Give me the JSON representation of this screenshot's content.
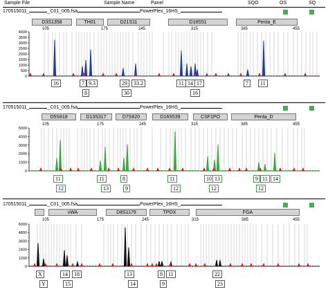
{
  "header": {
    "sample_file": "Sample File",
    "sample_name": "Sample Name",
    "panel": "Panel",
    "sqo": "SQO",
    "os": "OS",
    "sq": "SQ"
  },
  "colors": {
    "blue": "#1f3c9e",
    "green": "#3aa540",
    "black": "#111111",
    "red": "#d81b1b",
    "status": "#3cb54a",
    "bin": "#bdbdbd"
  },
  "panels": [
    {
      "sample_file": "170515011_",
      "sample_name": "_C01_005.fsa",
      "panel_name": "PowerPlex_16HS_",
      "color": "blue",
      "loci": [
        "D3S1358",
        "TH01",
        "D21S11",
        "D18S51",
        "Penta_E"
      ],
      "scale": [
        "105",
        "175",
        "245",
        "315",
        "385",
        "455"
      ],
      "yticks": [
        "4000",
        "3500",
        "3000",
        "2500",
        "2000",
        "1500",
        "1000",
        "500",
        "0"
      ],
      "alleles_top": [
        "16",
        "7",
        "9.3",
        "29",
        "33.2",
        "11",
        "14",
        "17",
        "7",
        "11"
      ],
      "alleles_bottom": [
        "8",
        "30",
        "16"
      ]
    },
    {
      "sample_file": "170515011_",
      "sample_name": "_C01_005.fsa",
      "panel_name": "PowerPlex_16HS_",
      "color": "green",
      "loci": [
        "D5S818",
        "D13S317",
        "D7S820",
        "D16S539",
        "CSF1PO",
        "Penta_D"
      ],
      "scale": [
        "105",
        "175",
        "245",
        "315",
        "385",
        "455"
      ],
      "yticks": [
        "5000",
        "4000",
        "3000",
        "2000",
        "1000",
        "0"
      ],
      "alleles_top": [
        "11",
        "11",
        "8",
        "11",
        "10",
        "13",
        "9",
        "11",
        "14"
      ],
      "alleles_bottom": [
        "12",
        "13",
        "9",
        "12",
        "12",
        "12"
      ]
    },
    {
      "sample_file": "170515011_",
      "sample_name": "_C01_005.fsa",
      "panel_name": "PowerPlex_16HS_",
      "color": "black",
      "loci": [
        "vWA",
        "D8S1179",
        "TPOX",
        "FGA"
      ],
      "scale": [
        "105",
        "175",
        "245",
        "315",
        "385",
        "455"
      ],
      "yticks": [
        "6000",
        "4800",
        "3600",
        "2400",
        "1200",
        "0"
      ],
      "alleles_top": [
        "X",
        "14",
        "18",
        "13",
        "8",
        "11",
        "22"
      ],
      "alleles_bottom": [
        "Y",
        "15",
        "14",
        "9",
        "23"
      ]
    }
  ]
}
